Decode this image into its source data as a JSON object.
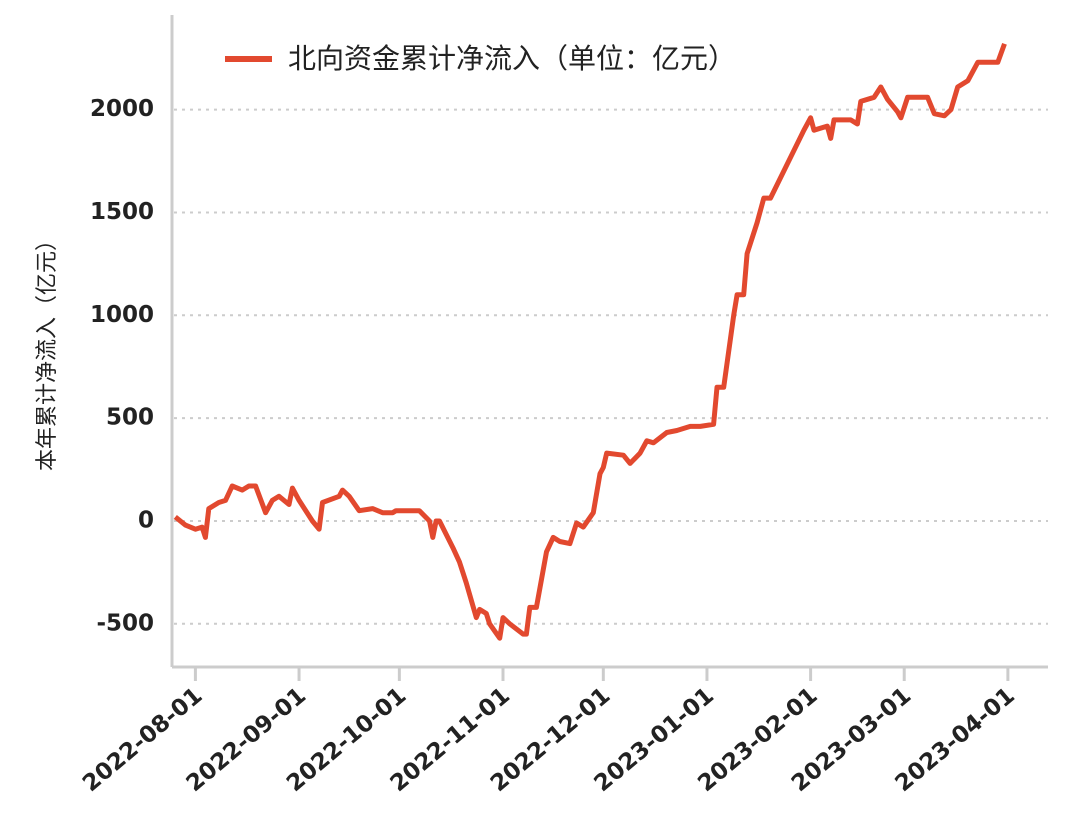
{
  "chart_data": {
    "type": "line",
    "legend_label": "北向资金累计净流入（单位：亿元）",
    "ylabel": "本年累计净流入（亿元）",
    "x": [
      "2022-07-26",
      "2022-07-29",
      "2022-08-01",
      "2022-08-03",
      "2022-08-04",
      "2022-08-05",
      "2022-08-08",
      "2022-08-10",
      "2022-08-12",
      "2022-08-15",
      "2022-08-17",
      "2022-08-19",
      "2022-08-22",
      "2022-08-24",
      "2022-08-26",
      "2022-08-29",
      "2022-08-30",
      "2022-09-01",
      "2022-09-05",
      "2022-09-07",
      "2022-09-08",
      "2022-09-13",
      "2022-09-14",
      "2022-09-16",
      "2022-09-19",
      "2022-09-23",
      "2022-09-26",
      "2022-09-29",
      "2022-09-30",
      "2022-10-07",
      "2022-10-10",
      "2022-10-11",
      "2022-10-12",
      "2022-10-13",
      "2022-10-17",
      "2022-10-19",
      "2022-10-21",
      "2022-10-24",
      "2022-10-25",
      "2022-10-27",
      "2022-10-28",
      "2022-10-31",
      "2022-11-01",
      "2022-11-03",
      "2022-11-07",
      "2022-11-08",
      "2022-11-09",
      "2022-11-11",
      "2022-11-14",
      "2022-11-16",
      "2022-11-18",
      "2022-11-21",
      "2022-11-23",
      "2022-11-25",
      "2022-11-28",
      "2022-11-30",
      "2022-12-01",
      "2022-12-02",
      "2022-12-07",
      "2022-12-09",
      "2022-12-12",
      "2022-12-14",
      "2022-12-16",
      "2022-12-20",
      "2022-12-23",
      "2022-12-27",
      "2022-12-30",
      "2023-01-03",
      "2023-01-04",
      "2023-01-06",
      "2023-01-09",
      "2023-01-10",
      "2023-01-12",
      "2023-01-13",
      "2023-01-16",
      "2023-01-18",
      "2023-01-20",
      "2023-01-30",
      "2023-02-01",
      "2023-02-02",
      "2023-02-06",
      "2023-02-07",
      "2023-02-08",
      "2023-02-10",
      "2023-02-13",
      "2023-02-15",
      "2023-02-16",
      "2023-02-20",
      "2023-02-22",
      "2023-02-24",
      "2023-02-27",
      "2023-02-28",
      "2023-03-02",
      "2023-03-06",
      "2023-03-08",
      "2023-03-10",
      "2023-03-13",
      "2023-03-15",
      "2023-03-17",
      "2023-03-20",
      "2023-03-23",
      "2023-03-27",
      "2023-03-29",
      "2023-03-31"
    ],
    "series": [
      {
        "name": "北向资金累计净流入（单位：亿元）",
        "color": "#e2492f",
        "values": [
          20,
          -20,
          -40,
          -30,
          -80,
          60,
          90,
          100,
          170,
          150,
          170,
          170,
          40,
          100,
          120,
          80,
          160,
          100,
          0,
          -40,
          90,
          120,
          150,
          120,
          50,
          60,
          40,
          40,
          50,
          50,
          0,
          -80,
          0,
          0,
          -130,
          -200,
          -300,
          -470,
          -430,
          -450,
          -500,
          -570,
          -470,
          -500,
          -550,
          -550,
          -420,
          -420,
          -150,
          -80,
          -100,
          -110,
          -10,
          -30,
          40,
          230,
          260,
          330,
          320,
          280,
          330,
          390,
          380,
          430,
          440,
          460,
          460,
          470,
          650,
          650,
          1000,
          1100,
          1100,
          1300,
          1450,
          1570,
          1570,
          1900,
          1960,
          1900,
          1920,
          1860,
          1950,
          1950,
          1950,
          1930,
          2040,
          2060,
          2110,
          2050,
          1990,
          1960,
          2060,
          2060,
          2060,
          1980,
          1970,
          2000,
          2110,
          2140,
          2230,
          2230,
          2230,
          2320
        ]
      }
    ],
    "xlim": [
      "2022-07-25",
      "2023-04-13"
    ],
    "xticks": [
      "2022-08-01",
      "2022-09-01",
      "2022-10-01",
      "2022-11-01",
      "2022-12-01",
      "2023-01-01",
      "2023-02-01",
      "2023-03-01",
      "2023-04-01"
    ],
    "ylim": [
      -710,
      2460
    ],
    "yticks": [
      -500,
      0,
      500,
      1000,
      1500,
      2000
    ],
    "grid": true
  }
}
